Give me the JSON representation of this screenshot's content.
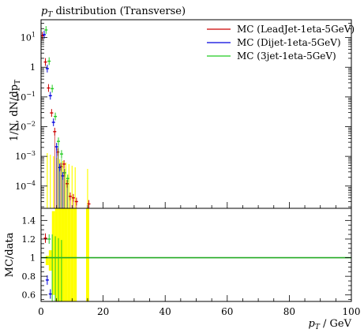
{
  "chart_data": {
    "type": "scatter",
    "title": "p_T distribution (Transverse)",
    "title_parts": {
      "var": "p",
      "sub": "T",
      "rest": " distribution (Transverse)"
    },
    "xlabel": "p_T / GeV",
    "xlabel_parts": {
      "var": "p",
      "sub": "T",
      "rest": " / GeV"
    },
    "ylabel_main": "1/N dN/dp_T",
    "ylabel_main_text": "1/N, dN/dp",
    "ylabel_main_sub": "T",
    "ylabel_ratio": "MC/data",
    "xlim": [
      0,
      100
    ],
    "ylim_main_log10": [
      -4.75,
      1.6
    ],
    "ylim_ratio": [
      0.53,
      1.53
    ],
    "x_ticks": [
      0,
      20,
      40,
      60,
      80,
      100
    ],
    "x_tick_labels": [
      "0",
      "20",
      "40",
      "60",
      "80",
      "100"
    ],
    "y_ticks_main": [
      {
        "exp": 1,
        "label": "10",
        "sup": "1"
      },
      {
        "exp": 0,
        "label": "1",
        "sup": ""
      },
      {
        "exp": -1,
        "label": "10",
        "sup": "−1"
      },
      {
        "exp": -2,
        "label": "10",
        "sup": "−2"
      },
      {
        "exp": -3,
        "label": "10",
        "sup": "−3"
      },
      {
        "exp": -4,
        "label": "10",
        "sup": "−4"
      }
    ],
    "y_ticks_ratio": [
      {
        "v": 1.4,
        "label": "1.4"
      },
      {
        "v": 1.2,
        "label": "1.2"
      },
      {
        "v": 1.0,
        "label": "1"
      },
      {
        "v": 0.8,
        "label": "0.8"
      },
      {
        "v": 0.6,
        "label": "0.6"
      }
    ],
    "grid": false,
    "legend_position": "top-right",
    "series": [
      {
        "name": "MC (LeadJet-1eta-5GeV)",
        "color": "#cc0000",
        "points": [
          [
            1,
            11.5
          ],
          [
            2,
            1.5
          ],
          [
            3,
            0.2
          ],
          [
            4,
            0.029
          ],
          [
            5,
            0.0068
          ],
          [
            6,
            0.0014
          ],
          [
            7,
            0.00045
          ],
          [
            8,
            0.00055
          ],
          [
            9,
            0.00012
          ],
          [
            10,
            4.5e-05
          ],
          [
            11,
            4e-05
          ],
          [
            12,
            3e-05
          ],
          [
            16,
            2.5e-05
          ]
        ]
      },
      {
        "name": "MC (Dijet-1eta-5GeV)",
        "color": "#0000dd",
        "points": [
          [
            1,
            12.5
          ],
          [
            2,
            0.9
          ],
          [
            3,
            0.11
          ],
          [
            4,
            0.014
          ],
          [
            5,
            0.0021
          ],
          [
            6,
            0.00042
          ],
          [
            7,
            0.00022
          ]
        ]
      },
      {
        "name": "MC (3jet-1eta-5GeV)",
        "color": "#22cc22",
        "points": [
          [
            1,
            18
          ],
          [
            2,
            1.6
          ],
          [
            3,
            0.19
          ],
          [
            4,
            0.022
          ],
          [
            5,
            0.0032
          ],
          [
            6,
            0.0012
          ],
          [
            7,
            0.00028
          ],
          [
            8,
            0.00018
          ]
        ]
      }
    ],
    "ratio_band": {
      "color": "#ffff00",
      "x": [
        2,
        3,
        4,
        5,
        6,
        7,
        8,
        9,
        10,
        11,
        15
      ],
      "lo": [
        0.92,
        0.86,
        0.6,
        0.53,
        0.53,
        0.53,
        0.53,
        0.53,
        0.53,
        0.53,
        0.53
      ],
      "hi": [
        1.02,
        1.08,
        1.5,
        1.53,
        1.53,
        1.53,
        1.53,
        1.53,
        1.53,
        1.53,
        1.53
      ]
    },
    "ratio_points": [
      {
        "series": 0,
        "x": 2,
        "y": 1.21
      },
      {
        "series": 1,
        "x": 3,
        "y": 0.61
      },
      {
        "series": 1,
        "x": 2,
        "y": 0.76
      },
      {
        "series": 2,
        "x": 2,
        "y": 1.2
      }
    ],
    "ratio_reference_line": {
      "value": 1.0,
      "color": "#22aa22"
    }
  }
}
